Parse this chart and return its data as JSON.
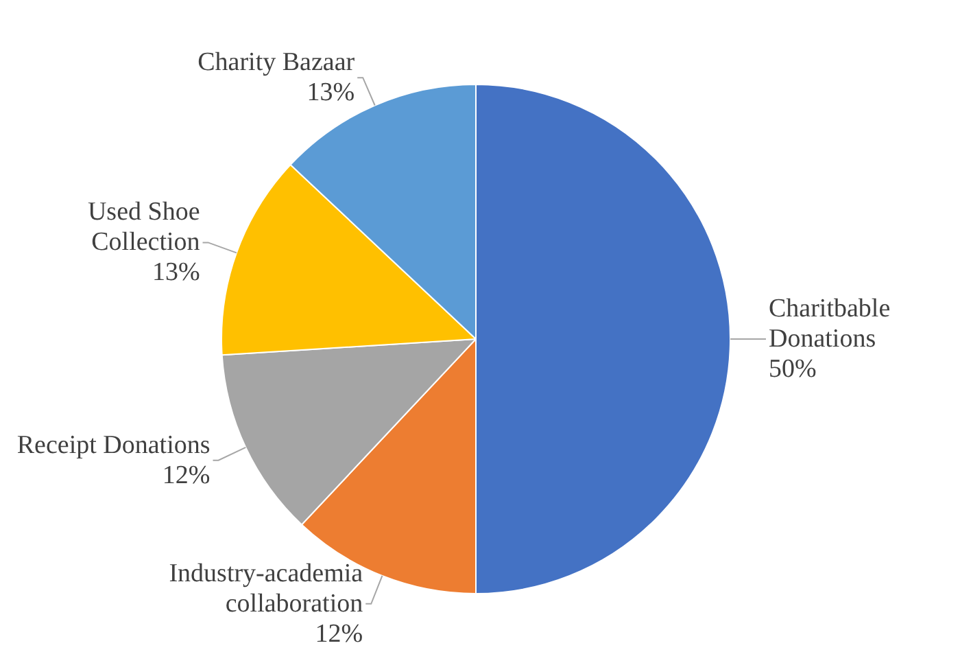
{
  "chart_data": {
    "type": "pie",
    "categories": [
      "Charitbable Donations",
      "Industry-academia collaboration",
      "Receipt Donations",
      "Used Shoe Collection",
      "Charity Bazaar"
    ],
    "values": [
      50,
      12,
      12,
      13,
      13
    ],
    "value_labels": [
      "50%",
      "12%",
      "12%",
      "13%",
      "13%"
    ],
    "colors": [
      "#4472c4",
      "#ed7d31",
      "#a5a5a5",
      "#ffc000",
      "#5b9bd5"
    ],
    "legend": false
  }
}
